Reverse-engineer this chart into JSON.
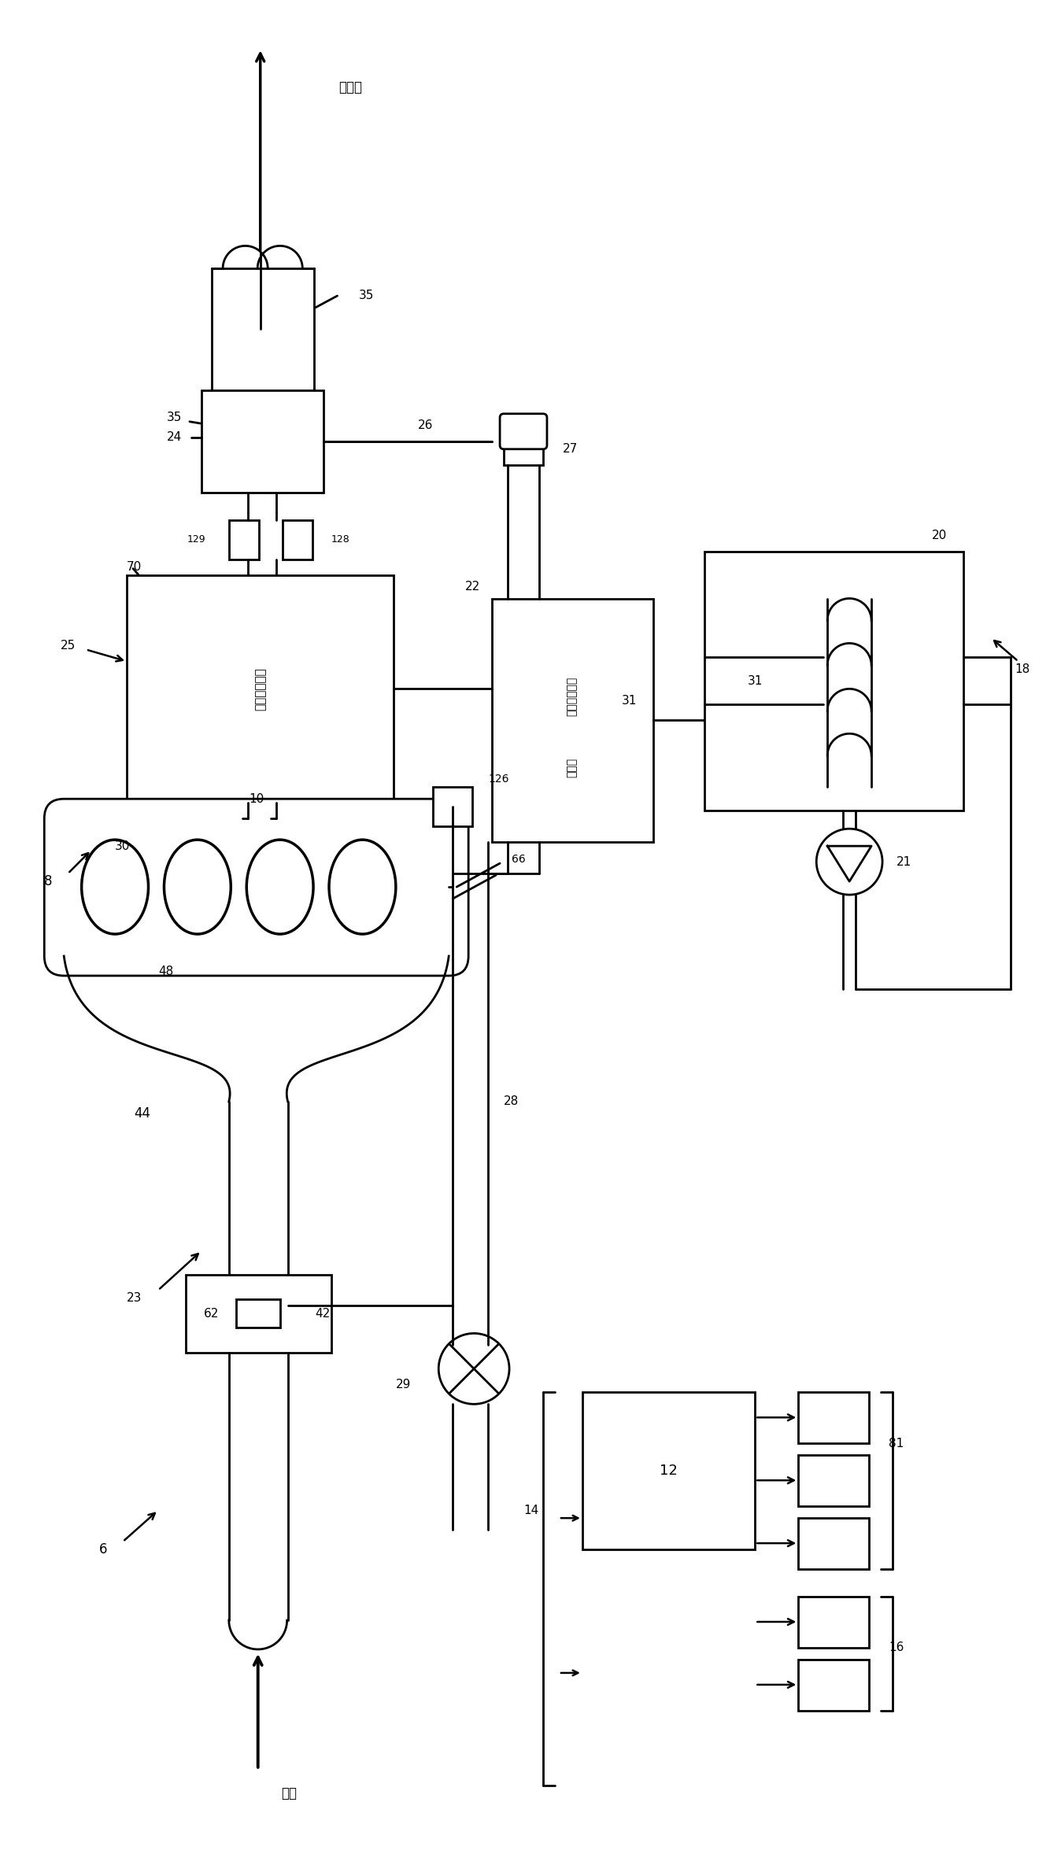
{
  "bg": "#ffffff",
  "lc": "#000000",
  "lw": 2.0,
  "fw": 13.48,
  "fh": 23.84,
  "texts": {
    "atm": "至大气",
    "air_in": "进气",
    "hc1": "碳氢化合物保",
    "hc2": "持系统",
    "emit": "排放控制装置"
  },
  "nums": {
    "6": "6",
    "8": "8",
    "10": "10",
    "12": "12",
    "14": "14",
    "16": "16",
    "18": "18",
    "20": "20",
    "21": "21",
    "22": "22",
    "23": "23",
    "24": "24",
    "25": "25",
    "26": "26",
    "27": "27",
    "28": "28",
    "29": "29",
    "30": "30",
    "31": "31",
    "35": "35",
    "42": "42",
    "44": "44",
    "48": "48",
    "62": "62",
    "66": "66",
    "70": "70",
    "81": "81",
    "126": "126",
    "128": "128",
    "129": "129"
  }
}
